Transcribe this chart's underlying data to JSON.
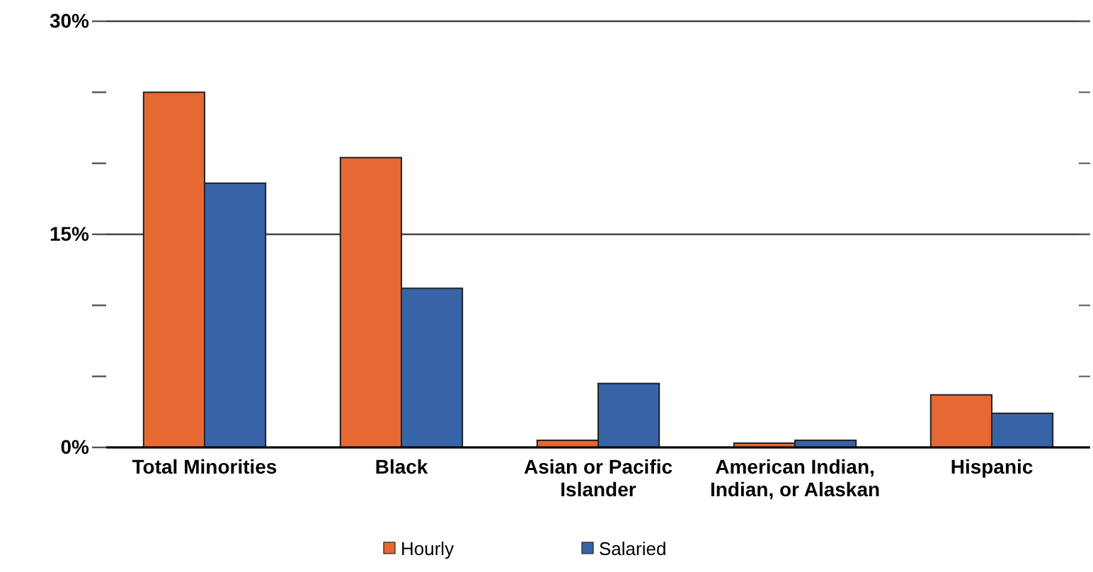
{
  "chart_data": {
    "type": "bar",
    "categories": [
      "Total Minorities",
      "Black",
      "Asian or Pacific Islander",
      "American Indian, Indian, or Alaskan",
      "Hispanic"
    ],
    "series": [
      {
        "name": "Hourly",
        "color": "#e66833",
        "values": [
          25.0,
          20.4,
          0.5,
          0.3,
          3.7
        ]
      },
      {
        "name": "Salaried",
        "color": "#3764a6",
        "values": [
          18.6,
          11.2,
          4.5,
          0.5,
          2.4
        ]
      }
    ],
    "ylim": [
      0,
      30
    ],
    "yticks": [
      {
        "value": 0,
        "label": "0%"
      },
      {
        "value": 5,
        "label": null
      },
      {
        "value": 10,
        "label": null
      },
      {
        "value": 15,
        "label": "15%"
      },
      {
        "value": 20,
        "label": null
      },
      {
        "value": 25,
        "label": null
      },
      {
        "value": 30,
        "label": "30%"
      }
    ],
    "grid": "y",
    "legend": "bottom"
  }
}
